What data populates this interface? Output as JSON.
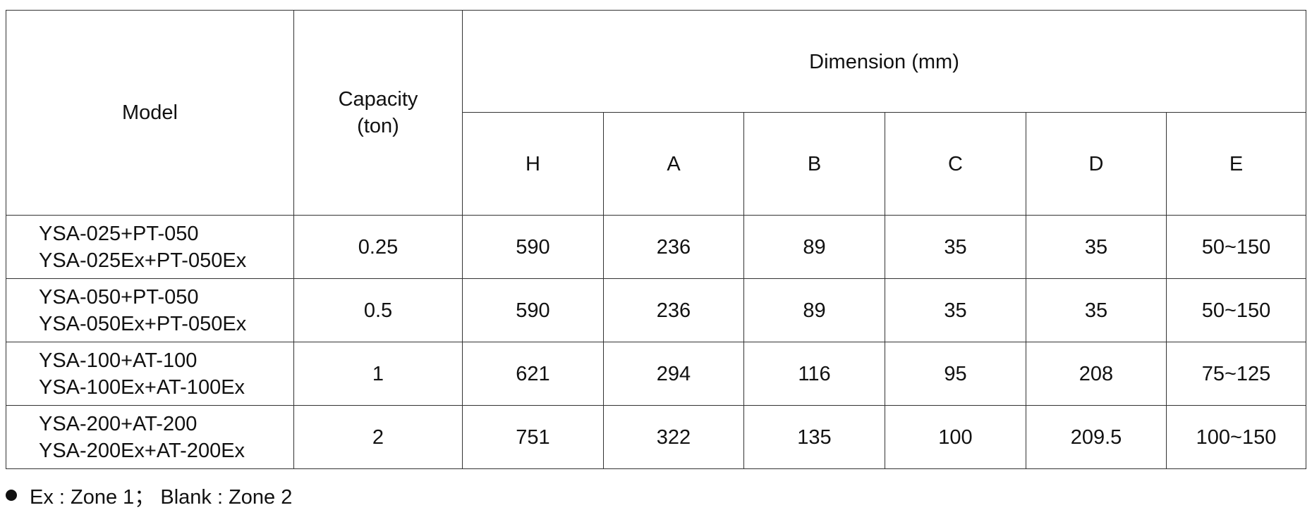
{
  "table": {
    "header": {
      "model": "Model",
      "capacity": [
        "Capacity",
        "(ton)"
      ],
      "dimension": "Dimension (mm)",
      "columns": [
        "H",
        "A",
        "B",
        "C",
        "D",
        "E"
      ]
    },
    "rows": [
      {
        "model": [
          "YSA-025+PT-050",
          "YSA-025Ex+PT-050Ex"
        ],
        "capacity": "0.25",
        "dims": [
          "590",
          "236",
          "89",
          "35",
          "35",
          "50~150"
        ]
      },
      {
        "model": [
          "YSA-050+PT-050",
          "YSA-050Ex+PT-050Ex"
        ],
        "capacity": "0.5",
        "dims": [
          "590",
          "236",
          "89",
          "35",
          "35",
          "50~150"
        ]
      },
      {
        "model": [
          "YSA-100+AT-100",
          "YSA-100Ex+AT-100Ex"
        ],
        "capacity": "1",
        "dims": [
          "621",
          "294",
          "116",
          "95",
          "208",
          "75~125"
        ]
      },
      {
        "model": [
          "YSA-200+AT-200",
          "YSA-200Ex+AT-200Ex"
        ],
        "capacity": "2",
        "dims": [
          "751",
          "322",
          "135",
          "100",
          "209.5",
          "100~150"
        ]
      }
    ]
  },
  "footnote": "Ex : Zone 1； Blank : Zone 2"
}
